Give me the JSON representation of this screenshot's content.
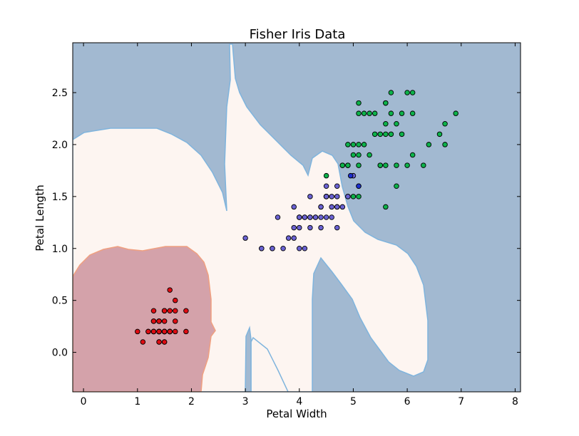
{
  "chart_data": {
    "type": "scatter",
    "title": "Fisher Iris Data",
    "xlabel": "Petal Width",
    "ylabel": "Petal Length",
    "xlim": [
      -0.2,
      8.1
    ],
    "ylim": [
      -0.38,
      2.98
    ],
    "x_ticks": [
      "0",
      "1",
      "2",
      "3",
      "4",
      "5",
      "6",
      "7",
      "8"
    ],
    "y_ticks": [
      "0.0",
      "0.5",
      "1.0",
      "1.5",
      "2.0",
      "2.5"
    ],
    "grid": false,
    "background_regions": [
      {
        "class": "region-a",
        "color": "#a2b9d1"
      },
      {
        "class": "region-b",
        "color": "#fdf5f1"
      },
      {
        "class": "region-c",
        "color": "#d4a2aa"
      }
    ],
    "series": [
      {
        "color": "#dd0c12",
        "points": [
          [
            1.4,
            0.2
          ],
          [
            1.4,
            0.2
          ],
          [
            1.3,
            0.2
          ],
          [
            1.5,
            0.2
          ],
          [
            1.4,
            0.2
          ],
          [
            1.7,
            0.4
          ],
          [
            1.4,
            0.3
          ],
          [
            1.5,
            0.2
          ],
          [
            1.4,
            0.2
          ],
          [
            1.5,
            0.1
          ],
          [
            1.5,
            0.2
          ],
          [
            1.6,
            0.2
          ],
          [
            1.4,
            0.1
          ],
          [
            1.1,
            0.1
          ],
          [
            1.2,
            0.2
          ],
          [
            1.5,
            0.4
          ],
          [
            1.3,
            0.4
          ],
          [
            1.4,
            0.3
          ],
          [
            1.7,
            0.3
          ],
          [
            1.5,
            0.3
          ],
          [
            1.7,
            0.2
          ],
          [
            1.5,
            0.4
          ],
          [
            1.0,
            0.2
          ],
          [
            1.7,
            0.5
          ],
          [
            1.9,
            0.2
          ],
          [
            1.6,
            0.2
          ],
          [
            1.6,
            0.4
          ],
          [
            1.5,
            0.2
          ],
          [
            1.4,
            0.2
          ],
          [
            1.6,
            0.2
          ],
          [
            1.6,
            0.2
          ],
          [
            1.5,
            0.4
          ],
          [
            1.5,
            0.1
          ],
          [
            1.4,
            0.2
          ],
          [
            1.5,
            0.2
          ],
          [
            1.2,
            0.2
          ],
          [
            1.3,
            0.2
          ],
          [
            1.4,
            0.1
          ],
          [
            1.3,
            0.2
          ],
          [
            1.5,
            0.2
          ],
          [
            1.3,
            0.3
          ],
          [
            1.3,
            0.3
          ],
          [
            1.3,
            0.2
          ],
          [
            1.6,
            0.6
          ],
          [
            1.9,
            0.4
          ],
          [
            1.4,
            0.3
          ],
          [
            1.6,
            0.2
          ],
          [
            1.4,
            0.2
          ],
          [
            1.5,
            0.2
          ],
          [
            1.4,
            0.2
          ]
        ]
      },
      {
        "color": "#6a62d2",
        "points": [
          [
            4.7,
            1.4
          ],
          [
            4.5,
            1.5
          ],
          [
            4.9,
            1.5
          ],
          [
            4.0,
            1.3
          ],
          [
            4.6,
            1.5
          ],
          [
            4.5,
            1.3
          ],
          [
            4.7,
            1.6
          ],
          [
            3.3,
            1.0
          ],
          [
            4.6,
            1.3
          ],
          [
            3.9,
            1.4
          ],
          [
            3.5,
            1.0
          ],
          [
            4.2,
            1.5
          ],
          [
            4.0,
            1.0
          ],
          [
            4.7,
            1.4
          ],
          [
            3.6,
            1.3
          ],
          [
            4.4,
            1.4
          ],
          [
            4.5,
            1.5
          ],
          [
            4.1,
            1.0
          ],
          [
            4.5,
            1.5
          ],
          [
            3.9,
            1.1
          ],
          [
            4.0,
            1.3
          ],
          [
            4.9,
            1.5
          ],
          [
            4.7,
            1.2
          ],
          [
            4.3,
            1.3
          ],
          [
            4.4,
            1.4
          ],
          [
            4.8,
            1.4
          ],
          [
            5.0,
            1.7
          ],
          [
            4.5,
            1.5
          ],
          [
            3.5,
            1.0
          ],
          [
            3.8,
            1.1
          ],
          [
            3.7,
            1.0
          ],
          [
            3.9,
            1.2
          ],
          [
            5.1,
            1.6
          ],
          [
            4.5,
            1.5
          ],
          [
            4.5,
            1.6
          ],
          [
            4.7,
            1.5
          ],
          [
            4.4,
            1.3
          ],
          [
            4.1,
            1.3
          ],
          [
            4.0,
            1.3
          ],
          [
            4.4,
            1.2
          ],
          [
            4.6,
            1.4
          ],
          [
            4.0,
            1.2
          ],
          [
            3.3,
            1.0
          ],
          [
            4.2,
            1.3
          ],
          [
            4.2,
            1.2
          ],
          [
            4.2,
            1.3
          ],
          [
            4.3,
            1.3
          ],
          [
            3.0,
            1.1
          ],
          [
            4.1,
            1.3
          ]
        ]
      },
      {
        "color": "#0db24a",
        "points": [
          [
            6.0,
            2.5
          ],
          [
            5.1,
            1.9
          ],
          [
            5.9,
            2.1
          ],
          [
            5.6,
            1.8
          ],
          [
            5.8,
            2.2
          ],
          [
            6.6,
            2.1
          ],
          [
            4.5,
            1.7
          ],
          [
            6.3,
            1.8
          ],
          [
            5.8,
            1.8
          ],
          [
            6.1,
            2.5
          ],
          [
            5.1,
            2.0
          ],
          [
            5.3,
            1.9
          ],
          [
            5.5,
            2.1
          ],
          [
            5.0,
            2.0
          ],
          [
            5.1,
            2.4
          ],
          [
            5.3,
            2.3
          ],
          [
            5.5,
            1.8
          ],
          [
            6.7,
            2.2
          ],
          [
            6.9,
            2.3
          ],
          [
            5.0,
            1.5
          ],
          [
            5.7,
            2.3
          ],
          [
            4.9,
            2.0
          ],
          [
            6.7,
            2.0
          ],
          [
            4.9,
            1.8
          ],
          [
            5.7,
            2.1
          ],
          [
            6.0,
            1.8
          ],
          [
            4.8,
            1.8
          ],
          [
            4.9,
            1.8
          ],
          [
            5.6,
            2.1
          ],
          [
            5.8,
            1.6
          ],
          [
            6.1,
            1.9
          ],
          [
            6.4,
            2.0
          ],
          [
            5.6,
            2.2
          ],
          [
            5.1,
            1.5
          ],
          [
            5.6,
            1.4
          ],
          [
            6.1,
            2.3
          ],
          [
            5.6,
            2.4
          ],
          [
            5.5,
            1.8
          ],
          [
            4.8,
            1.8
          ],
          [
            5.4,
            2.1
          ],
          [
            5.6,
            2.4
          ],
          [
            5.1,
            2.3
          ],
          [
            5.9,
            2.3
          ],
          [
            5.7,
            2.5
          ],
          [
            5.2,
            2.3
          ],
          [
            5.0,
            1.9
          ],
          [
            5.2,
            2.0
          ],
          [
            5.4,
            2.3
          ],
          [
            5.1,
            1.8
          ]
        ]
      },
      {
        "color": "#1a2fd0",
        "points": [
          [
            4.95,
            1.7
          ],
          [
            5.1,
            1.6
          ]
        ]
      }
    ]
  }
}
